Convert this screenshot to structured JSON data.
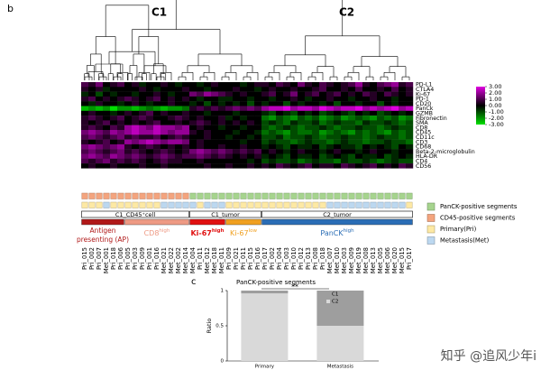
{
  "chart_data": [
    {
      "type": "heatmap",
      "panel": "b",
      "dendrogram_labels": [
        "C1",
        "C2"
      ],
      "rows": [
        "PD-L1",
        "CTLA4",
        "Ki-67",
        "PD-1",
        "CD20",
        "PanCk",
        "GZMB",
        "Fibronectin",
        "SMA",
        "CD8",
        "CD45",
        "CD11c",
        "CD3",
        "CD68",
        "Beta-2-microglobulin",
        "HLA-DR",
        "CD4",
        "CD56"
      ],
      "columns": [
        "Pri_015",
        "Pri_002",
        "Pri_007",
        "Met_001",
        "Pri_018",
        "Pri_006",
        "Pri_005",
        "Pri_003",
        "Pri_009",
        "Pri_001",
        "Pri_016",
        "Met_021",
        "Met_022",
        "Met_002",
        "Met_014",
        "Met_004",
        "Pri_011",
        "Met_012",
        "Met_018",
        "Met_011",
        "Pri_009",
        "Pri_021",
        "Pri_011",
        "Pri_015",
        "Pri_016",
        "Pri_017",
        "Pri_002",
        "Pri_004",
        "Pri_003",
        "Pri_010",
        "Pri_012",
        "Pri_013",
        "Pri_008",
        "Pri_018",
        "Met_007",
        "Met_010",
        "Met_003",
        "Met_009",
        "Met_019",
        "Met_008",
        "Met_013",
        "Met_005",
        "Met_006",
        "Met_020",
        "Met_015",
        "Pri_017"
      ],
      "values": [
        [
          1,
          0.5,
          1.5,
          0,
          0.5,
          1,
          0,
          0.5,
          -0.5,
          0,
          0,
          0.5,
          0,
          -0.5,
          0,
          0,
          -0.5,
          0,
          0.5,
          0,
          0,
          0,
          -0.5,
          0,
          0.5,
          0.5,
          0,
          1,
          0.5,
          0,
          1.5,
          0.5,
          0,
          1,
          0.5,
          0,
          0.5,
          1,
          2,
          0.5,
          0,
          1,
          1.5,
          2,
          0.5,
          1
        ],
        [
          0.5,
          0,
          0.5,
          -0.5,
          0,
          0,
          0,
          0,
          0.5,
          0,
          -0.5,
          0,
          0,
          0,
          0.5,
          0,
          0,
          -0.5,
          0,
          0,
          0,
          0.5,
          0,
          0,
          -0.5,
          0,
          0.5,
          0,
          0,
          0.5,
          0,
          0,
          0.5,
          1,
          0,
          0,
          0.5,
          0,
          1,
          0,
          0,
          0.5,
          0,
          1,
          0,
          0.5
        ],
        [
          -0.5,
          0,
          -1,
          0,
          -0.5,
          0,
          0,
          -0.5,
          0,
          0,
          0.5,
          0,
          -0.5,
          0,
          0,
          1.5,
          1,
          2,
          1.5,
          1,
          0.5,
          0,
          0.5,
          0,
          0,
          0.5,
          1,
          0,
          0.5,
          1.5,
          0,
          0.5,
          1,
          0,
          0.5,
          1,
          0,
          0.5,
          0,
          1,
          0.5,
          0,
          1,
          0.5,
          0,
          0.5
        ],
        [
          0.5,
          1,
          0,
          0.5,
          0,
          0.5,
          1,
          0.5,
          0,
          0.5,
          1,
          0,
          0.5,
          0,
          0.5,
          0,
          -0.5,
          0,
          0,
          -0.5,
          -0.5,
          0,
          0,
          -0.5,
          0,
          0,
          -0.5,
          0,
          0,
          0.5,
          0,
          -0.5,
          0,
          0,
          0.5,
          0,
          0,
          -0.5,
          0,
          0,
          0.5,
          0,
          0,
          -0.5,
          0,
          0
        ],
        [
          0,
          -0.5,
          0.5,
          0,
          0,
          -0.5,
          0,
          0.5,
          0,
          -0.5,
          0,
          0,
          0.5,
          0,
          0,
          -0.5,
          0,
          -1,
          0,
          -0.5,
          0,
          -0.5,
          0,
          -1,
          0,
          -0.5,
          0,
          0,
          -1,
          0,
          -0.5,
          0,
          0,
          -0.5,
          0,
          -1,
          0,
          0,
          -0.5,
          0,
          0,
          -1,
          0,
          -0.5,
          0,
          0
        ],
        [
          -2.5,
          -2,
          -2.5,
          -2,
          -3,
          -2,
          -2,
          -2.5,
          -2,
          -1.5,
          -2,
          -2.5,
          -2,
          -2,
          -1.5,
          0.5,
          1,
          0.5,
          1,
          0.5,
          1,
          1.5,
          1,
          1.5,
          1,
          2,
          2.5,
          2.5,
          3,
          2,
          2.5,
          2.5,
          2,
          3,
          2.5,
          2,
          2.5,
          2.5,
          3,
          2,
          2.5,
          2,
          2.5,
          3,
          2,
          2.5
        ],
        [
          0,
          0.5,
          0,
          0,
          -0.5,
          0,
          0.5,
          0,
          0.5,
          1,
          0,
          0.5,
          0,
          0,
          0.5,
          0,
          0,
          -0.5,
          0,
          0,
          0,
          -0.5,
          0,
          0,
          0,
          -0.5,
          -1,
          0,
          -0.5,
          -1,
          0,
          -0.5,
          0,
          -1,
          -0.5,
          0,
          -0.5,
          -1,
          0,
          -0.5,
          0,
          -1,
          -0.5,
          0,
          -0.5,
          0
        ],
        [
          0.5,
          1,
          0.5,
          0,
          0.5,
          1,
          0,
          0.5,
          1,
          0.5,
          0,
          0,
          0.5,
          1,
          0.5,
          0,
          0.5,
          0,
          0,
          0.5,
          -0.5,
          0,
          -0.5,
          0,
          0,
          -1.5,
          -2,
          -1,
          -1.5,
          -2,
          -1,
          -1.5,
          -1,
          -2,
          -1.5,
          -1,
          -2,
          -1.5,
          -1,
          -1.5,
          -2,
          -1,
          -1.5,
          -1,
          -2,
          -1.5
        ],
        [
          0.5,
          0,
          0.5,
          1,
          0,
          0.5,
          0,
          0.5,
          0,
          0.5,
          1,
          0,
          0,
          0.5,
          0,
          0.5,
          1,
          0.5,
          0,
          0.5,
          0,
          0.5,
          0,
          0.5,
          0,
          -1,
          -0.5,
          -1,
          -1.5,
          -0.5,
          -1,
          -1,
          -0.5,
          -1.5,
          -1,
          -0.5,
          -1,
          -1,
          -1.5,
          -0.5,
          -1,
          -1,
          -0.5,
          -1,
          -1.5,
          -1
        ],
        [
          0.5,
          1,
          0.5,
          0,
          1,
          0.5,
          2,
          2.5,
          2,
          1.5,
          2.5,
          2,
          2,
          1.5,
          2,
          0,
          0.5,
          0,
          0,
          -0.5,
          0,
          0,
          -0.5,
          0,
          0,
          -1,
          -1.5,
          -1,
          -0.5,
          -1,
          -1.5,
          -1,
          -1,
          -0.5,
          -1,
          -1.5,
          -1,
          -1,
          -0.5,
          -1,
          -1,
          -1.5,
          -1,
          -0.5,
          -1,
          -1
        ],
        [
          1.5,
          2,
          1.5,
          1,
          2,
          1.5,
          2,
          2.5,
          2,
          2,
          2.5,
          2,
          1.5,
          2,
          2,
          0.5,
          0,
          0.5,
          0,
          0,
          0,
          -0.5,
          0,
          0,
          -0.5,
          -1.5,
          -1,
          -1.5,
          -2,
          -1,
          -1.5,
          -1.5,
          -1,
          -2,
          -1.5,
          -1,
          -1.5,
          -2,
          -1,
          -1.5,
          -1,
          -1.5,
          -2,
          -1,
          -1.5,
          -1
        ],
        [
          1,
          1.5,
          1,
          0.5,
          1,
          1.5,
          0.5,
          1,
          0.5,
          0.5,
          1,
          0,
          0.5,
          1,
          0.5,
          0,
          0,
          0.5,
          0,
          0,
          -0.5,
          0,
          0,
          -0.5,
          0,
          -1,
          -1,
          -0.5,
          -1.5,
          -1,
          -1,
          -0.5,
          -1,
          -1.5,
          -1,
          -1,
          -0.5,
          -1,
          -1,
          -1.5,
          -1,
          -0.5,
          -1,
          -1,
          -1.5,
          -1
        ],
        [
          0.5,
          0,
          0.5,
          1,
          0,
          0.5,
          2,
          1.5,
          2,
          2.5,
          2,
          1.5,
          2,
          2,
          1.5,
          0,
          0.5,
          0,
          0,
          0,
          0,
          0,
          -0.5,
          0,
          0,
          -1,
          -0.5,
          -1,
          -1,
          -1.5,
          -1,
          -0.5,
          -1,
          -1,
          -1.5,
          -1,
          -0.5,
          -1,
          -1,
          -1.5,
          -1,
          -1,
          -0.5,
          -1,
          -1,
          -1.5
        ],
        [
          1.5,
          2,
          1.5,
          1,
          1.5,
          2,
          0.5,
          0,
          0.5,
          1,
          0.5,
          0,
          0.5,
          0,
          0.5,
          0,
          0.5,
          0,
          0,
          0.5,
          0,
          0,
          0.5,
          0,
          0,
          -0.5,
          0,
          -0.5,
          -1,
          0,
          -0.5,
          -0.5,
          0,
          -1,
          -0.5,
          0,
          -0.5,
          -0.5,
          -1,
          0,
          -0.5,
          0,
          -0.5,
          -1,
          0,
          -0.5
        ],
        [
          1,
          1.5,
          1,
          0.5,
          1,
          1.5,
          0.5,
          1,
          0.5,
          0,
          0.5,
          1,
          0.5,
          0,
          0.5,
          1.5,
          2,
          1.5,
          1,
          1.5,
          1,
          0.5,
          1,
          0.5,
          1,
          0,
          0.5,
          0,
          -0.5,
          0,
          0.5,
          0,
          0,
          -0.5,
          0,
          0.5,
          0,
          0,
          -0.5,
          0,
          0.5,
          0,
          0,
          -0.5,
          0,
          0
        ],
        [
          1.5,
          2,
          1.5,
          1,
          2,
          1.5,
          1,
          1.5,
          1,
          0.5,
          1,
          1.5,
          1,
          0.5,
          1,
          1,
          1.5,
          1,
          0.5,
          1,
          0.5,
          0,
          0.5,
          0,
          0.5,
          -0.5,
          0,
          -0.5,
          -1,
          0,
          -0.5,
          -0.5,
          0,
          -1,
          -0.5,
          0,
          -0.5,
          -1,
          0,
          -0.5,
          -0.5,
          0,
          -1,
          -0.5,
          0,
          -0.5
        ],
        [
          1,
          0.5,
          1,
          1.5,
          0.5,
          1,
          0.5,
          1,
          0.5,
          0,
          0.5,
          1,
          0.5,
          0.5,
          0,
          0,
          0.5,
          0,
          0,
          0,
          0,
          0,
          0,
          -0.5,
          0,
          -1,
          -0.5,
          -1,
          -1,
          -0.5,
          -1.5,
          -1,
          -0.5,
          -1,
          -1,
          -1.5,
          -0.5,
          -1,
          -1,
          -0.5,
          -1,
          -1.5,
          -1,
          -0.5,
          -1,
          -1
        ],
        [
          0,
          0.5,
          0,
          0,
          0.5,
          0,
          0,
          0,
          0.5,
          0,
          0,
          0.5,
          0,
          0,
          0,
          0,
          0,
          0.5,
          0,
          0,
          0.5,
          0,
          0,
          0.5,
          0,
          0.5,
          0,
          1,
          0.5,
          0,
          0.5,
          1,
          0,
          0.5,
          0.5,
          0,
          1,
          0.5,
          0,
          0.5,
          1,
          0,
          0.5,
          0,
          1,
          0.5
        ]
      ],
      "clim": [
        -3,
        3
      ],
      "colors": {
        "low": "#00e000",
        "mid": "#000000",
        "high": "#e000e0"
      },
      "colorbar_ticks": [
        {
          "value": 3,
          "label": "3.00"
        },
        {
          "value": 2,
          "label": "2.00"
        },
        {
          "value": 1,
          "label": "1.00"
        },
        {
          "value": 0,
          "label": "0.00"
        },
        {
          "value": -1,
          "label": "-1.00"
        },
        {
          "value": -2,
          "label": "-2.00"
        },
        {
          "value": -3,
          "label": "-3.00"
        }
      ],
      "annotation_legend": [
        {
          "label": "PanCK-positive segments",
          "color": "#a6d48e"
        },
        {
          "label": "CD45-positive segments",
          "color": "#f4a47e"
        },
        {
          "label": "Primary(Pri)",
          "color": "#fde9a4"
        },
        {
          "label": "Metastasis(Met)",
          "color": "#bcd8f0"
        }
      ],
      "annotation_tracks": [
        [
          1,
          1,
          1,
          1,
          1,
          1,
          1,
          1,
          1,
          1,
          1,
          1,
          1,
          1,
          1,
          0,
          0,
          0,
          0,
          0,
          0,
          0,
          0,
          0,
          0,
          0,
          0,
          0,
          0,
          0,
          0,
          0,
          0,
          0,
          0,
          0,
          0,
          0,
          0,
          0,
          0,
          0,
          0,
          0,
          0,
          0
        ],
        [
          2,
          2,
          2,
          3,
          2,
          2,
          2,
          2,
          2,
          2,
          2,
          3,
          3,
          3,
          3,
          3,
          2,
          3,
          3,
          3,
          2,
          2,
          2,
          2,
          2,
          2,
          2,
          2,
          2,
          2,
          2,
          2,
          2,
          2,
          3,
          3,
          3,
          3,
          3,
          3,
          3,
          3,
          3,
          3,
          3,
          2
        ]
      ],
      "clusters": [
        {
          "label": "C1_CD45⁺cell",
          "span": 15
        },
        {
          "label": "C1_tumor",
          "span": 10
        },
        {
          "label": "C2_tumor",
          "span": 21
        }
      ],
      "subgroups": [
        {
          "lines": [
            "Antigen",
            "presenting (AP)"
          ],
          "color": "#b01818",
          "span": 6
        },
        {
          "text": "CD8",
          "sup": "high",
          "color": "#ee9a84",
          "span": 9
        },
        {
          "text": "Ki-67",
          "sup": "high",
          "color": "#e01010",
          "span": 5
        },
        {
          "text": "Ki-67",
          "sup": "low",
          "color": "#f0a020",
          "span": 5
        },
        {
          "text": "PanCK",
          "sup": "high",
          "color": "#2a6db5",
          "span": 21
        }
      ]
    },
    {
      "type": "bar",
      "panel": "c",
      "title": "PanCK-positive segments",
      "ylabel": "Ratio",
      "categories": [
        "Primary",
        "Metastasis"
      ],
      "series": [
        {
          "name": "C1",
          "color": "#9e9e9e",
          "values": [
            0.04,
            0.5
          ]
        },
        {
          "name": "C2",
          "color": "#d9d9d9",
          "values": [
            0.96,
            0.5
          ]
        }
      ],
      "ylim": [
        0,
        1
      ],
      "yticks": [
        0,
        0.5,
        1
      ],
      "annotation": "**"
    }
  ],
  "watermark": "知乎 @追风少年i"
}
